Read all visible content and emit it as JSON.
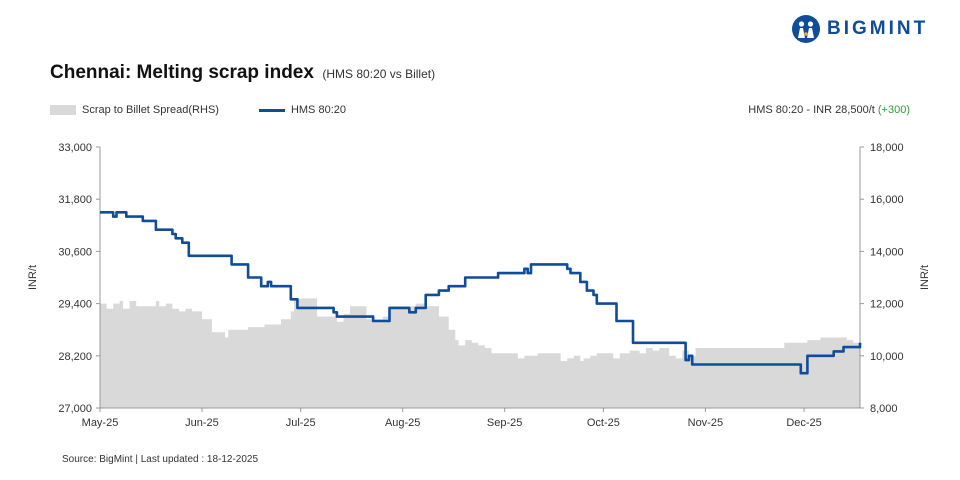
{
  "brand": {
    "name": "BIGMINT",
    "color": "#0f4c99",
    "icon": "people-logo-icon"
  },
  "header": {
    "title": "Chennai: Melting scrap index",
    "subtitle": "(HMS 80:20 vs Billet)"
  },
  "legend": {
    "area_label": "Scrap to Billet Spread(RHS)",
    "line_label": "HMS 80:20"
  },
  "latest": {
    "label": "HMS 80:20 - INR 28,500/t ",
    "change": "(+300)",
    "change_color": "#2e9d3a"
  },
  "footer": {
    "source": "Source: BigMint | Last updated : 18-12-2025"
  },
  "chart_data": {
    "type": "line",
    "title": "Chennai: Melting scrap index",
    "subtitle": "(HMS 80:20 vs Billet)",
    "x_tick_labels": [
      "May-25",
      "Jun-25",
      "Jul-25",
      "Aug-25",
      "Sep-25",
      "Oct-25",
      "Nov-25",
      "Dec-25"
    ],
    "x_range": [
      "2025-05-01",
      "2025-12-18"
    ],
    "y_left": {
      "label": "INR/t",
      "ticks": [
        "27,000",
        "28,200",
        "29,400",
        "30,600",
        "31,800",
        "33,000"
      ],
      "min": 27000,
      "max": 33000
    },
    "y_right": {
      "label": "INR/t",
      "ticks": [
        "8,000",
        "10,000",
        "12,000",
        "14,000",
        "16,000",
        "18,000"
      ],
      "min": 8000,
      "max": 18000
    },
    "grid": false,
    "series": [
      {
        "name": "HMS 80:20",
        "kind": "line",
        "axis": "left",
        "color": "#0f4c99",
        "points": [
          [
            "2025-05-01",
            31500
          ],
          [
            "2025-05-03",
            31500
          ],
          [
            "2025-05-05",
            31400
          ],
          [
            "2025-05-06",
            31500
          ],
          [
            "2025-05-08",
            31500
          ],
          [
            "2025-05-09",
            31400
          ],
          [
            "2025-05-12",
            31400
          ],
          [
            "2025-05-14",
            31300
          ],
          [
            "2025-05-16",
            31300
          ],
          [
            "2025-05-18",
            31100
          ],
          [
            "2025-05-21",
            31100
          ],
          [
            "2025-05-23",
            31000
          ],
          [
            "2025-05-24",
            30900
          ],
          [
            "2025-05-25",
            30900
          ],
          [
            "2025-05-26",
            30800
          ],
          [
            "2025-05-27",
            30800
          ],
          [
            "2025-05-28",
            30500
          ],
          [
            "2025-06-03",
            30500
          ],
          [
            "2025-06-09",
            30500
          ],
          [
            "2025-06-10",
            30300
          ],
          [
            "2025-06-14",
            30300
          ],
          [
            "2025-06-15",
            30000
          ],
          [
            "2025-06-18",
            30000
          ],
          [
            "2025-06-19",
            29800
          ],
          [
            "2025-06-20",
            29800
          ],
          [
            "2025-06-21",
            29900
          ],
          [
            "2025-06-22",
            29800
          ],
          [
            "2025-06-26",
            29800
          ],
          [
            "2025-06-28",
            29500
          ],
          [
            "2025-06-30",
            29300
          ],
          [
            "2025-07-04",
            29300
          ],
          [
            "2025-07-08",
            29300
          ],
          [
            "2025-07-09",
            29300
          ],
          [
            "2025-07-11",
            29200
          ],
          [
            "2025-07-12",
            29100
          ],
          [
            "2025-07-20",
            29100
          ],
          [
            "2025-07-23",
            29000
          ],
          [
            "2025-07-27",
            29000
          ],
          [
            "2025-07-28",
            29300
          ],
          [
            "2025-08-02",
            29300
          ],
          [
            "2025-08-03",
            29200
          ],
          [
            "2025-08-04",
            29200
          ],
          [
            "2025-08-05",
            29300
          ],
          [
            "2025-08-07",
            29300
          ],
          [
            "2025-08-08",
            29600
          ],
          [
            "2025-08-10",
            29600
          ],
          [
            "2025-08-12",
            29700
          ],
          [
            "2025-08-14",
            29700
          ],
          [
            "2025-08-15",
            29800
          ],
          [
            "2025-08-17",
            29800
          ],
          [
            "2025-08-20",
            30000
          ],
          [
            "2025-08-22",
            30000
          ],
          [
            "2025-08-25",
            30000
          ],
          [
            "2025-08-27",
            30000
          ],
          [
            "2025-08-29",
            30000
          ],
          [
            "2025-08-30",
            30100
          ],
          [
            "2025-09-05",
            30100
          ],
          [
            "2025-09-07",
            30200
          ],
          [
            "2025-09-08",
            30100
          ],
          [
            "2025-09-09",
            30300
          ],
          [
            "2025-09-18",
            30300
          ],
          [
            "2025-09-20",
            30200
          ],
          [
            "2025-09-21",
            30100
          ],
          [
            "2025-09-23",
            30100
          ],
          [
            "2025-09-24",
            29900
          ],
          [
            "2025-09-25",
            29900
          ],
          [
            "2025-09-26",
            29700
          ],
          [
            "2025-09-28",
            29600
          ],
          [
            "2025-09-29",
            29400
          ],
          [
            "2025-10-04",
            29400
          ],
          [
            "2025-10-05",
            29000
          ],
          [
            "2025-10-07",
            29000
          ],
          [
            "2025-10-10",
            28500
          ],
          [
            "2025-10-19",
            28500
          ],
          [
            "2025-10-24",
            28500
          ],
          [
            "2025-10-26",
            28100
          ],
          [
            "2025-10-27",
            28200
          ],
          [
            "2025-10-28",
            28000
          ],
          [
            "2025-11-15",
            28000
          ],
          [
            "2025-11-28",
            28000
          ],
          [
            "2025-11-30",
            27800
          ],
          [
            "2025-12-01",
            27800
          ],
          [
            "2025-12-02",
            28200
          ],
          [
            "2025-12-08",
            28200
          ],
          [
            "2025-12-10",
            28300
          ],
          [
            "2025-12-12",
            28300
          ],
          [
            "2025-12-13",
            28400
          ],
          [
            "2025-12-16",
            28400
          ],
          [
            "2025-12-18",
            28500
          ]
        ]
      },
      {
        "name": "Scrap to Billet Spread(RHS)",
        "kind": "area",
        "axis": "right",
        "color": "#d9d9d9",
        "points": [
          [
            "2025-05-01",
            12000
          ],
          [
            "2025-05-03",
            11800
          ],
          [
            "2025-05-05",
            12000
          ],
          [
            "2025-05-07",
            12100
          ],
          [
            "2025-05-08",
            11800
          ],
          [
            "2025-05-10",
            12100
          ],
          [
            "2025-05-12",
            11900
          ],
          [
            "2025-05-14",
            11900
          ],
          [
            "2025-05-16",
            11900
          ],
          [
            "2025-05-18",
            12100
          ],
          [
            "2025-05-19",
            11900
          ],
          [
            "2025-05-21",
            12000
          ],
          [
            "2025-05-23",
            11800
          ],
          [
            "2025-05-25",
            11700
          ],
          [
            "2025-05-27",
            11800
          ],
          [
            "2025-05-29",
            11700
          ],
          [
            "2025-06-01",
            11400
          ],
          [
            "2025-06-03",
            11400
          ],
          [
            "2025-06-04",
            10900
          ],
          [
            "2025-06-06",
            10900
          ],
          [
            "2025-06-08",
            10700
          ],
          [
            "2025-06-09",
            11000
          ],
          [
            "2025-06-14",
            11000
          ],
          [
            "2025-06-15",
            11100
          ],
          [
            "2025-06-19",
            11100
          ],
          [
            "2025-06-20",
            11200
          ],
          [
            "2025-06-24",
            11200
          ],
          [
            "2025-06-25",
            11400
          ],
          [
            "2025-06-28",
            11700
          ],
          [
            "2025-06-29",
            12200
          ],
          [
            "2025-07-05",
            12200
          ],
          [
            "2025-07-06",
            11500
          ],
          [
            "2025-07-09",
            11500
          ],
          [
            "2025-07-12",
            11300
          ],
          [
            "2025-07-14",
            11600
          ],
          [
            "2025-07-16",
            11900
          ],
          [
            "2025-07-20",
            11900
          ],
          [
            "2025-07-21",
            11400
          ],
          [
            "2025-07-24",
            11400
          ],
          [
            "2025-07-26",
            11500
          ],
          [
            "2025-07-28",
            11900
          ],
          [
            "2025-08-01",
            11900
          ],
          [
            "2025-08-03",
            11900
          ],
          [
            "2025-08-05",
            12000
          ],
          [
            "2025-08-08",
            11900
          ],
          [
            "2025-08-12",
            11500
          ],
          [
            "2025-08-15",
            11000
          ],
          [
            "2025-08-17",
            10600
          ],
          [
            "2025-08-18",
            10400
          ],
          [
            "2025-08-20",
            10600
          ],
          [
            "2025-08-22",
            10500
          ],
          [
            "2025-08-24",
            10400
          ],
          [
            "2025-08-26",
            10300
          ],
          [
            "2025-08-28",
            10100
          ],
          [
            "2025-09-03",
            10100
          ],
          [
            "2025-09-05",
            9900
          ],
          [
            "2025-09-07",
            10000
          ],
          [
            "2025-09-09",
            10000
          ],
          [
            "2025-09-11",
            10100
          ],
          [
            "2025-09-16",
            10100
          ],
          [
            "2025-09-18",
            9800
          ],
          [
            "2025-09-20",
            9900
          ],
          [
            "2025-09-22",
            10000
          ],
          [
            "2025-09-24",
            9800
          ],
          [
            "2025-09-25",
            9900
          ],
          [
            "2025-09-27",
            10000
          ],
          [
            "2025-09-29",
            10100
          ],
          [
            "2025-10-02",
            10100
          ],
          [
            "2025-10-04",
            9900
          ],
          [
            "2025-10-06",
            10100
          ],
          [
            "2025-10-09",
            10200
          ],
          [
            "2025-10-12",
            10100
          ],
          [
            "2025-10-14",
            10300
          ],
          [
            "2025-10-16",
            10200
          ],
          [
            "2025-10-18",
            10300
          ],
          [
            "2025-10-21",
            10000
          ],
          [
            "2025-10-23",
            9900
          ],
          [
            "2025-10-25",
            10200
          ],
          [
            "2025-10-27",
            10000
          ],
          [
            "2025-10-29",
            10300
          ],
          [
            "2025-11-15",
            10300
          ],
          [
            "2025-11-18",
            10300
          ],
          [
            "2025-11-25",
            10500
          ],
          [
            "2025-12-01",
            10500
          ],
          [
            "2025-12-02",
            10600
          ],
          [
            "2025-12-05",
            10600
          ],
          [
            "2025-12-06",
            10700
          ],
          [
            "2025-12-12",
            10700
          ],
          [
            "2025-12-14",
            10600
          ],
          [
            "2025-12-16",
            10500
          ],
          [
            "2025-12-18",
            10600
          ]
        ]
      }
    ]
  }
}
